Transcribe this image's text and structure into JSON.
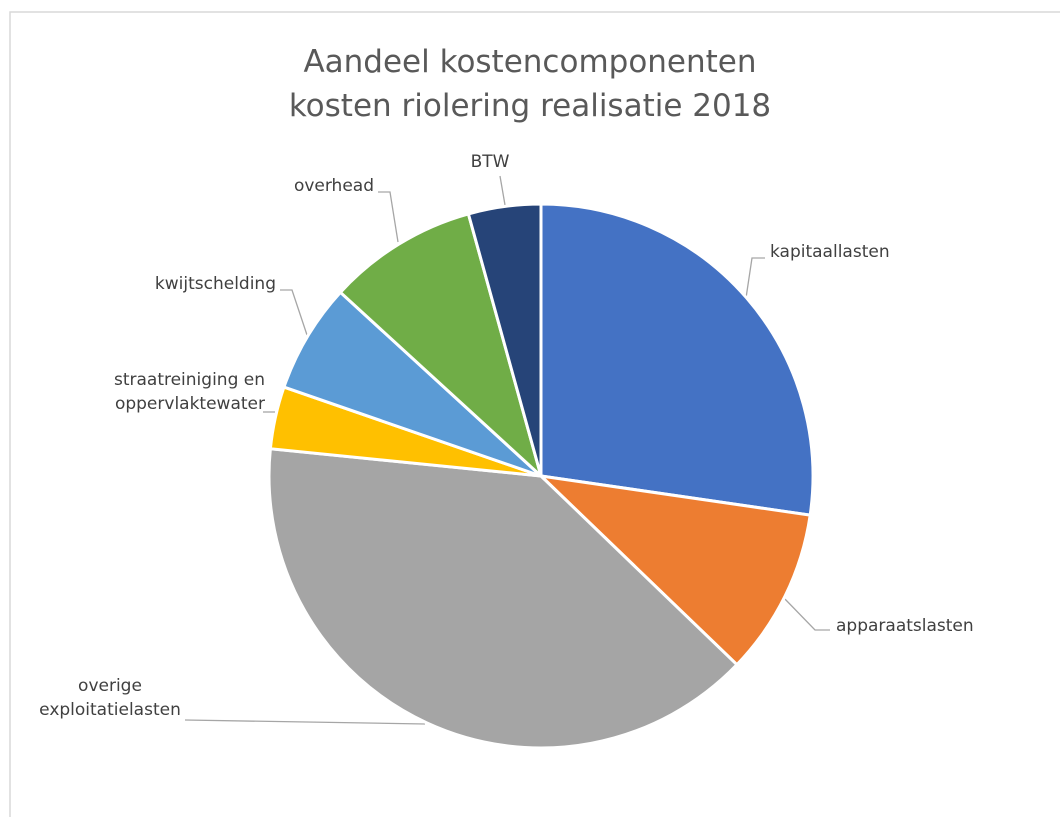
{
  "chart_data": {
    "type": "pie",
    "title": "Aandeel kostencomponenten kosten riolering realisatie 2018",
    "categories": [
      "kapitaallasten",
      "apparaatslasten",
      "overige exploitatielasten",
      "straatreiniging en oppervlaktewater",
      "kwijtschelding",
      "overhead",
      "BTW"
    ],
    "values": [
      27.3,
      9.9,
      39.4,
      3.7,
      6.5,
      8.9,
      4.3
    ],
    "colors": [
      "#4472c4",
      "#ed7d31",
      "#a5a5a5",
      "#ffc000",
      "#5b9bd5",
      "#70ad47",
      "#264478"
    ]
  }
}
